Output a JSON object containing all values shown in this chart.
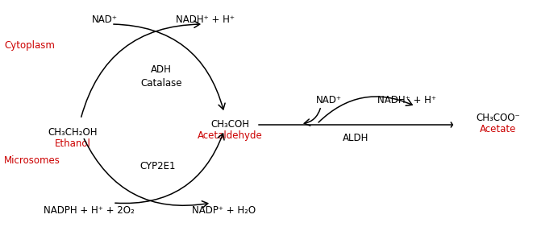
{
  "background_color": "#ffffff",
  "text_color": "#000000",
  "red_color": "#cc0000",
  "figsize": [
    6.61,
    2.82
  ],
  "dpi": 100,
  "labels": {
    "cytoplasm": "Cytoplasm",
    "microsomes": "Microsomes",
    "nad_top": "NAD⁺",
    "nadh_top": "NADH⁺ + H⁺",
    "adh_catalase": "ADH\nCatalase",
    "ethanol_chem": "CH₃CH₂OH",
    "ethanol": "Ethanol",
    "acetaldehyde_chem": "CH₃COH",
    "acetaldehyde": "Acetaldehyde",
    "cyp2e1": "CYP2E1",
    "nadph": "NADPH + H⁺ + 2O₂",
    "nadp": "NADP⁺ + H₂O",
    "nad_right": "NAD⁺",
    "nadh_right": "NADH⁺ + H⁺",
    "aldh": "ALDH",
    "acetate_chem": "CH₃COO⁻",
    "acetate": "Acetate"
  }
}
